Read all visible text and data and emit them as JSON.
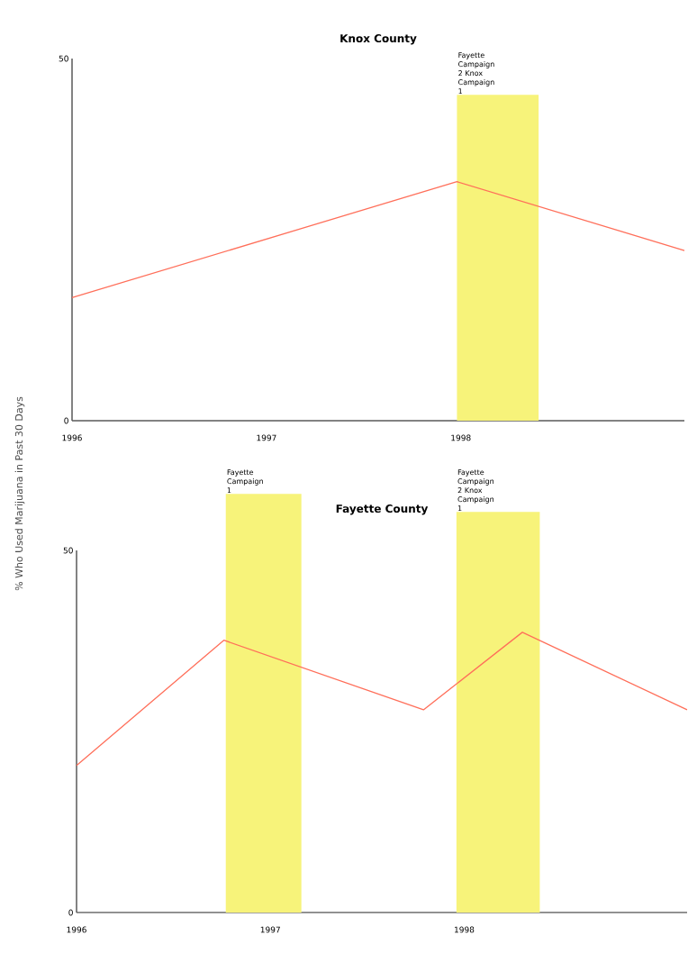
{
  "chart_data": [
    {
      "type": "line",
      "title": "Knox County",
      "ylabel": "% Who Used Marijuana in Past 30 Days",
      "x": [
        1996,
        1997.98,
        1999.15
      ],
      "series": [
        {
          "color": "#ff6f5a",
          "values": [
            17,
            33,
            23.5
          ]
        }
      ],
      "xlim": [
        1996,
        1999.15
      ],
      "xticks": [
        1996,
        1997,
        1998
      ],
      "ylim": [
        0,
        50
      ],
      "yticks": [
        0,
        50
      ],
      "bands": [
        {
          "axis": "x",
          "from": 1997.98,
          "to": 1998.4,
          "label": "Fayette Campaign 2 Knox Campaign 1",
          "color": "#f7f37a"
        }
      ]
    },
    {
      "type": "line",
      "title": "Fayette County",
      "x": [
        1996,
        1996.76,
        1997.79,
        1998.3,
        1999.15
      ],
      "series": [
        {
          "color": "#ff6f5a",
          "values": [
            20.3,
            37.6,
            28,
            38.7,
            28
          ]
        }
      ],
      "xlim": [
        1996,
        1999.15
      ],
      "xticks": [
        1996,
        1997,
        1998
      ],
      "ylim": [
        0,
        50
      ],
      "yticks": [
        0,
        50
      ],
      "bands": [
        {
          "axis": "x",
          "from": 1996.77,
          "to": 1997.16,
          "label": "Fayette Campaign 1",
          "color": "#f7f37a"
        },
        {
          "axis": "x",
          "from": 1997.96,
          "to": 1998.39,
          "label": "Fayette Campaign 2 Knox Campaign 1",
          "color": "#f7f37a"
        }
      ]
    }
  ]
}
